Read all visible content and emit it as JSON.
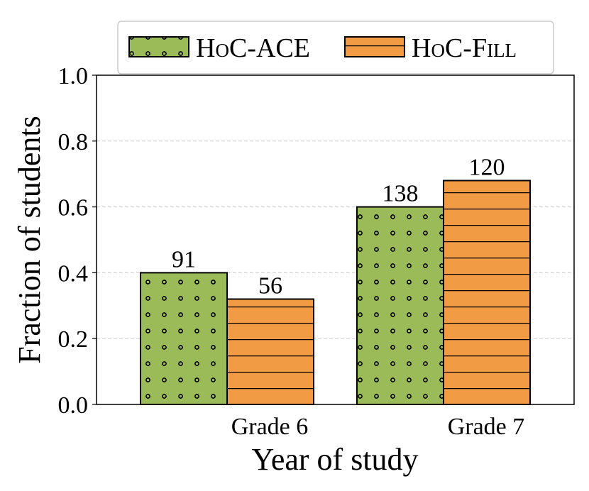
{
  "chart_data": {
    "type": "bar",
    "xlabel": "Year of study",
    "ylabel": "Fraction of students",
    "categories": [
      "Grade 6",
      "Grade 7"
    ],
    "series": [
      {
        "name": "HoC-ACE",
        "color": "#9bbb59",
        "hatch": "dots",
        "values": [
          0.4,
          0.6
        ],
        "value_labels": [
          "91",
          "138"
        ]
      },
      {
        "name": "HoC-Fill",
        "color": "#f29b45",
        "hatch": "lines",
        "values": [
          0.32,
          0.68
        ],
        "value_labels": [
          "56",
          "120"
        ]
      }
    ],
    "ylim": [
      0,
      1
    ],
    "yticks": [
      {
        "value": 0,
        "label": "0.0"
      },
      0.2,
      0.4,
      0.6,
      0.8,
      {
        "value": 1,
        "label": "1.0"
      }
    ],
    "grid": true,
    "legend": "top"
  }
}
